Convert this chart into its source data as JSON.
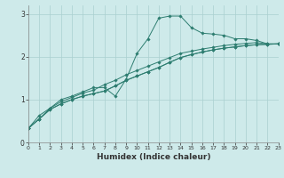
{
  "xlabel": "Humidex (Indice chaleur)",
  "bg_color": "#ceeaea",
  "line_color": "#2d7d70",
  "grid_color": "#aad0d0",
  "xmin": 0,
  "xmax": 23,
  "ymin": 0,
  "ymax": 3.2,
  "yticks": [
    0,
    1,
    2,
    3
  ],
  "xticks": [
    0,
    1,
    2,
    3,
    4,
    5,
    6,
    7,
    8,
    9,
    10,
    11,
    12,
    13,
    14,
    15,
    16,
    17,
    18,
    19,
    20,
    21,
    22,
    23
  ],
  "series": [
    [
      0.33,
      0.63,
      0.8,
      1.0,
      1.08,
      1.18,
      1.28,
      1.28,
      1.08,
      1.48,
      2.08,
      2.42,
      2.9,
      2.95,
      2.95,
      2.68,
      2.55,
      2.53,
      2.5,
      2.42,
      2.42,
      2.38,
      2.3,
      2.3
    ],
    [
      0.33,
      0.55,
      0.8,
      0.95,
      1.05,
      1.15,
      1.22,
      1.35,
      1.45,
      1.58,
      1.68,
      1.78,
      1.88,
      1.98,
      2.08,
      2.13,
      2.18,
      2.22,
      2.26,
      2.29,
      2.31,
      2.33,
      2.3,
      2.3
    ],
    [
      0.33,
      0.55,
      0.77,
      0.9,
      1.0,
      1.08,
      1.14,
      1.2,
      1.32,
      1.45,
      1.55,
      1.65,
      1.75,
      1.87,
      1.98,
      2.05,
      2.11,
      2.16,
      2.2,
      2.23,
      2.26,
      2.28,
      2.29,
      2.3
    ],
    [
      0.33,
      0.55,
      0.77,
      0.9,
      1.0,
      1.08,
      1.14,
      1.2,
      1.32,
      1.45,
      1.55,
      1.65,
      1.75,
      1.87,
      1.98,
      2.05,
      2.11,
      2.16,
      2.2,
      2.23,
      2.26,
      2.28,
      2.29,
      2.3
    ]
  ]
}
